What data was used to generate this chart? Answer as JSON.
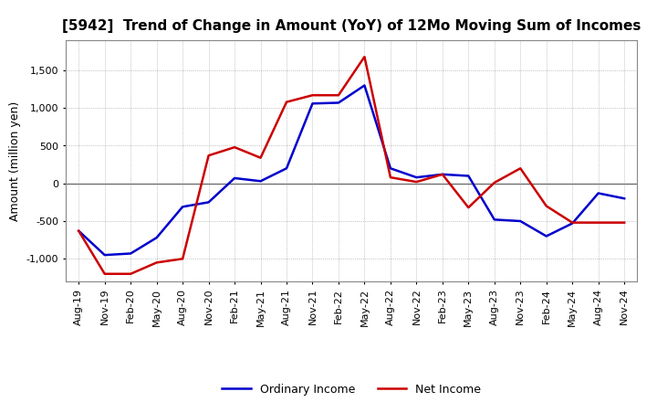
{
  "title": "[5942]  Trend of Change in Amount (YoY) of 12Mo Moving Sum of Incomes",
  "ylabel": "Amount (million yen)",
  "x_labels": [
    "Aug-19",
    "Nov-19",
    "Feb-20",
    "May-20",
    "Aug-20",
    "Nov-20",
    "Feb-21",
    "May-21",
    "Aug-21",
    "Nov-21",
    "Feb-22",
    "May-22",
    "Aug-22",
    "Nov-22",
    "Feb-23",
    "May-23",
    "Aug-23",
    "Nov-23",
    "Feb-24",
    "May-24",
    "Aug-24",
    "Nov-24"
  ],
  "ordinary_income": [
    -630,
    -950,
    -930,
    -720,
    -310,
    -250,
    70,
    30,
    200,
    1060,
    1070,
    1300,
    200,
    80,
    120,
    100,
    -480,
    -500,
    -700,
    -530,
    -130,
    -200
  ],
  "net_income": [
    -630,
    -1200,
    -1200,
    -1050,
    -1000,
    370,
    480,
    340,
    1080,
    1170,
    1170,
    1680,
    80,
    20,
    120,
    -320,
    10,
    200,
    -300,
    -520,
    -520,
    -520
  ],
  "ordinary_color": "#0000cc",
  "net_color": "#cc0000",
  "ylim": [
    -1300,
    1900
  ],
  "yticks": [
    -1000,
    -500,
    0,
    500,
    1000,
    1500
  ],
  "background_color": "#ffffff",
  "grid_color": "#999999",
  "title_fontsize": 11,
  "axis_fontsize": 9,
  "tick_fontsize": 8
}
